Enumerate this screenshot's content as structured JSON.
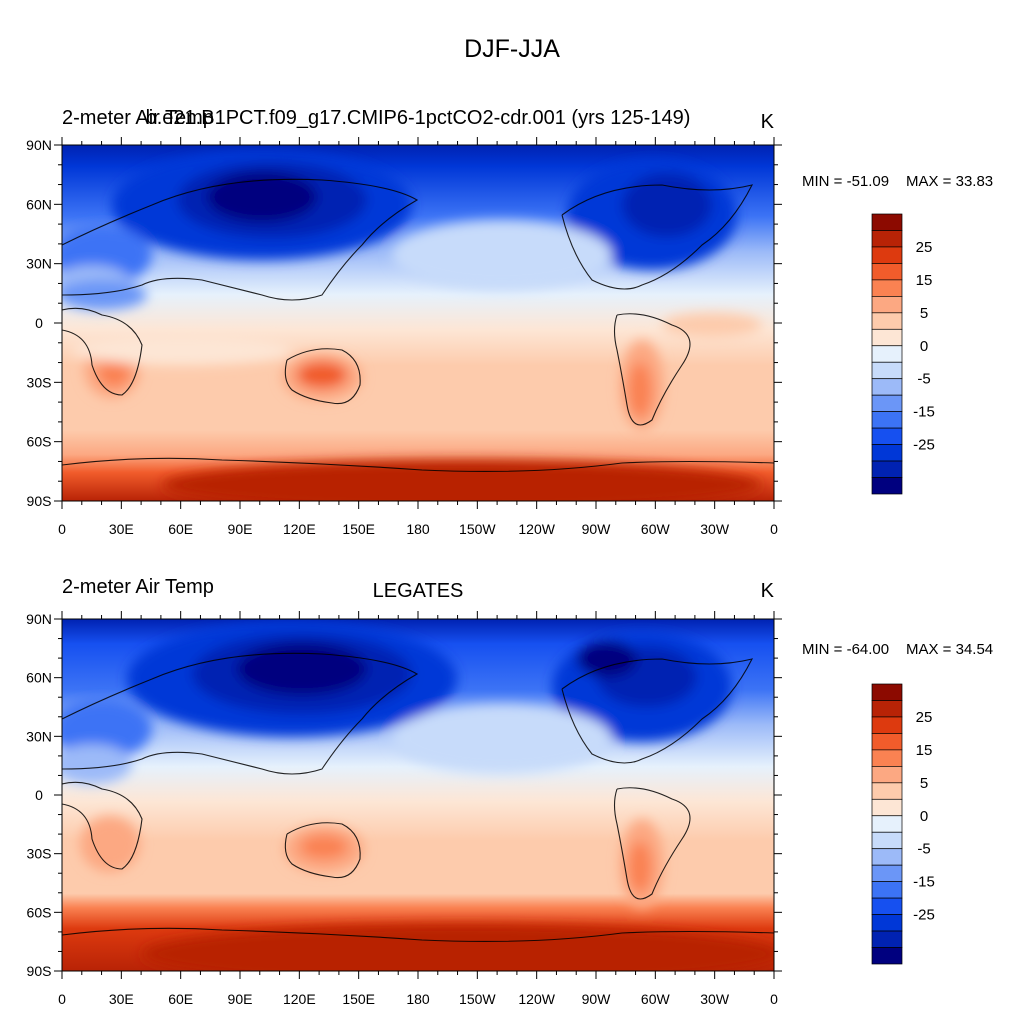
{
  "figure": {
    "title": "DJF-JJA"
  },
  "panels": [
    {
      "left_title": "2-meter Air Temp",
      "center_title": "b.e21.B1PCT.f09_g17.CMIP6-1pctCO2-cdr.001 (yrs 125-149)",
      "units": "K",
      "min_label": "MIN = -51.09",
      "max_label": "MAX =  33.83"
    },
    {
      "left_title": "2-meter Air Temp",
      "center_title": "LEGATES",
      "units": "K",
      "min_label": "MIN = -64.00",
      "max_label": "MAX =  34.54"
    }
  ],
  "axes": {
    "lat_ticks": [
      "90N",
      "60N",
      "30N",
      "0",
      "30S",
      "60S",
      "90S"
    ],
    "lon_ticks": [
      "0",
      "30E",
      "60E",
      "90E",
      "120E",
      "150E",
      "180",
      "150W",
      "120W",
      "90W",
      "60W",
      "30W",
      "0"
    ]
  },
  "colorbar": {
    "colors": [
      "#00007f",
      "#0022b2",
      "#0037d7",
      "#1650f0",
      "#3c73f5",
      "#6b96f7",
      "#9cbaf8",
      "#c7dbfa",
      "#e6f1fc",
      "#fde6d5",
      "#fdcbac",
      "#fca882",
      "#fa8252",
      "#f15c2b",
      "#dd3a0f",
      "#b82306",
      "#8c0a00"
    ],
    "labels": [
      "25",
      "15",
      "5",
      "0",
      "-5",
      "-15",
      "-25"
    ]
  },
  "map_colors": {
    "deep_cold": "#00007f",
    "cold": "#0037d7",
    "cool": "#6b96f7",
    "mild_cool": "#c7dbfa",
    "neutral_cool": "#e6f1fc",
    "neutral_warm": "#fde6d5",
    "warm": "#fdcbac",
    "hot": "#fa8252",
    "very_hot": "#dd3a0f"
  }
}
